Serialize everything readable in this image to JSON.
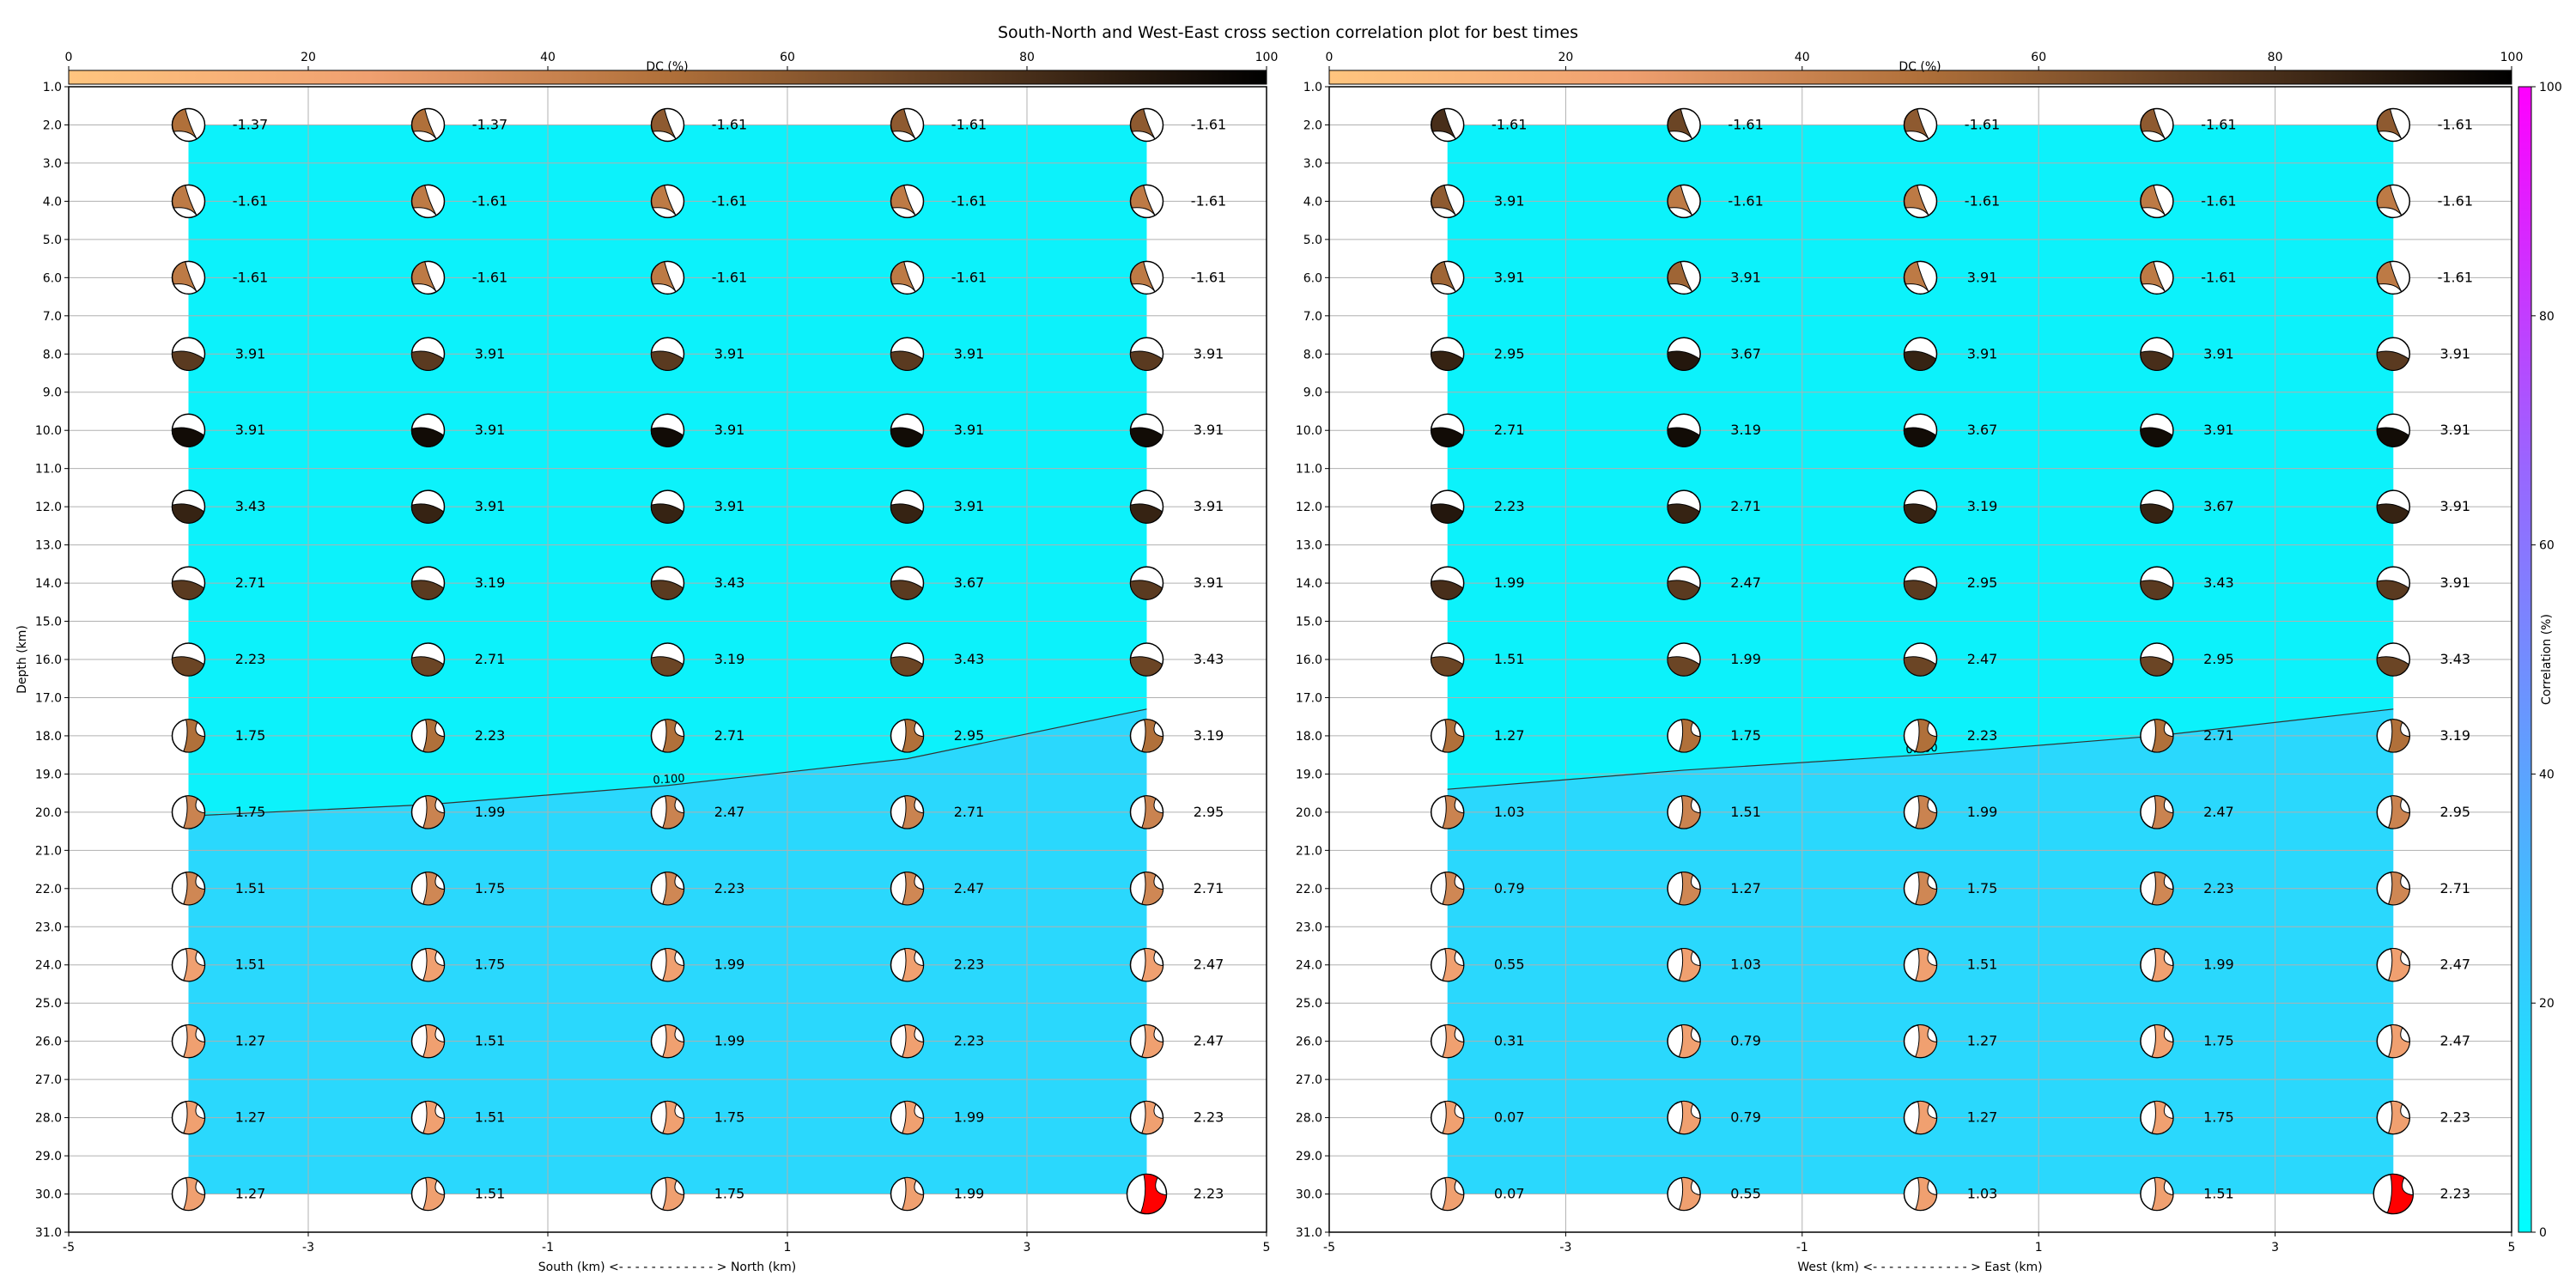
{
  "figure": {
    "title": "South-North and West-East cross section correlation plot for best times"
  },
  "chart_data": [
    {
      "type": "heatmap",
      "panel": "south-north",
      "xlabel": "South (km) <- - - - - - - - - - - - > North (km)",
      "ylabel": "Depth (km)",
      "xlim": [
        -5,
        5
      ],
      "ylim": [
        31,
        1
      ],
      "x_ticks": [
        "-5",
        "-3",
        "-1",
        "1",
        "3",
        "5"
      ],
      "y_ticks": [
        "1.0",
        "2.0",
        "3.0",
        "4.0",
        "5.0",
        "6.0",
        "7.0",
        "8.0",
        "9.0",
        "10.0",
        "11.0",
        "12.0",
        "13.0",
        "14.0",
        "15.0",
        "16.0",
        "17.0",
        "18.0",
        "19.0",
        "20.0",
        "21.0",
        "22.0",
        "23.0",
        "24.0",
        "25.0",
        "26.0",
        "27.0",
        "28.0",
        "29.0",
        "30.0",
        "31.0"
      ],
      "grid": true,
      "x": [
        -4,
        -2,
        0,
        2,
        4
      ],
      "depths": [
        2,
        4,
        6,
        8,
        10,
        12,
        14,
        16,
        18,
        20,
        22,
        24,
        26,
        28,
        30
      ],
      "labels": [
        [
          "-1.37",
          "-1.37",
          "-1.61",
          "-1.61",
          "-1.61"
        ],
        [
          "-1.61",
          "-1.61",
          "-1.61",
          "-1.61",
          "-1.61"
        ],
        [
          "-1.61",
          "-1.61",
          "-1.61",
          "-1.61",
          "-1.61"
        ],
        [
          "3.91",
          "3.91",
          "3.91",
          "3.91",
          "3.91"
        ],
        [
          "3.91",
          "3.91",
          "3.91",
          "3.91",
          "3.91"
        ],
        [
          "3.43",
          "3.91",
          "3.91",
          "3.91",
          "3.91"
        ],
        [
          "2.71",
          "3.19",
          "3.43",
          "3.67",
          "3.91"
        ],
        [
          "2.23",
          "2.71",
          "3.19",
          "3.43",
          "3.43"
        ],
        [
          "1.75",
          "2.23",
          "2.71",
          "2.95",
          "3.19"
        ],
        [
          "1.75",
          "1.99",
          "2.47",
          "2.71",
          "2.95"
        ],
        [
          "1.51",
          "1.75",
          "2.23",
          "2.47",
          "2.71"
        ],
        [
          "1.51",
          "1.75",
          "1.99",
          "2.23",
          "2.47"
        ],
        [
          "1.27",
          "1.51",
          "1.99",
          "2.23",
          "2.47"
        ],
        [
          "1.27",
          "1.51",
          "1.75",
          "1.99",
          "2.23"
        ],
        [
          "1.27",
          "1.51",
          "1.75",
          "1.99",
          "2.23"
        ]
      ],
      "dc_percent": [
        [
          50,
          50,
          60,
          60,
          60
        ],
        [
          45,
          45,
          45,
          45,
          45
        ],
        [
          45,
          45,
          45,
          45,
          45
        ],
        [
          75,
          75,
          75,
          75,
          75
        ],
        [
          95,
          95,
          95,
          95,
          95
        ],
        [
          85,
          85,
          85,
          85,
          85
        ],
        [
          75,
          75,
          75,
          75,
          75
        ],
        [
          70,
          70,
          70,
          70,
          70
        ],
        [
          50,
          50,
          50,
          50,
          50
        ],
        [
          40,
          40,
          40,
          40,
          40
        ],
        [
          38,
          38,
          38,
          38,
          38
        ],
        [
          25,
          25,
          25,
          25,
          25
        ],
        [
          25,
          25,
          25,
          25,
          25
        ],
        [
          25,
          25,
          25,
          25,
          25
        ],
        [
          25,
          25,
          25,
          25,
          0
        ]
      ],
      "highlight": [
        14,
        4
      ],
      "highlight_color": "#ff0000",
      "contour": {
        "label": "0.100",
        "points": [
          [
            -4,
            20.1
          ],
          [
            -2,
            19.8
          ],
          [
            0,
            19.3
          ],
          [
            2,
            18.6
          ],
          [
            4,
            17.3
          ]
        ]
      },
      "upper_color": "#0cf2fb",
      "lower_color": "#2ad8fd"
    },
    {
      "type": "heatmap",
      "panel": "west-east",
      "xlabel": "West (km) <- - - - - - - - - - - - > East (km)",
      "ylabel": "",
      "xlim": [
        -5,
        5
      ],
      "ylim": [
        31,
        1
      ],
      "x_ticks": [
        "-5",
        "-3",
        "-1",
        "1",
        "3",
        "5"
      ],
      "y_ticks": [
        "1.0",
        "2.0",
        "3.0",
        "4.0",
        "5.0",
        "6.0",
        "7.0",
        "8.0",
        "9.0",
        "10.0",
        "11.0",
        "12.0",
        "13.0",
        "14.0",
        "15.0",
        "16.0",
        "17.0",
        "18.0",
        "19.0",
        "20.0",
        "21.0",
        "22.0",
        "23.0",
        "24.0",
        "25.0",
        "26.0",
        "27.0",
        "28.0",
        "29.0",
        "30.0",
        "31.0"
      ],
      "grid": true,
      "x": [
        -4,
        -2,
        0,
        2,
        4
      ],
      "depths": [
        2,
        4,
        6,
        8,
        10,
        12,
        14,
        16,
        18,
        20,
        22,
        24,
        26,
        28,
        30
      ],
      "labels": [
        [
          "-1.61",
          "-1.61",
          "-1.61",
          "-1.61",
          "-1.61"
        ],
        [
          "3.91",
          "-1.61",
          "-1.61",
          "-1.61",
          "-1.61"
        ],
        [
          "3.91",
          "3.91",
          "3.91",
          "-1.61",
          "-1.61"
        ],
        [
          "2.95",
          "3.67",
          "3.91",
          "3.91",
          "3.91"
        ],
        [
          "2.71",
          "3.19",
          "3.67",
          "3.91",
          "3.91"
        ],
        [
          "2.23",
          "2.71",
          "3.19",
          "3.67",
          "3.91"
        ],
        [
          "1.99",
          "2.47",
          "2.95",
          "3.43",
          "3.91"
        ],
        [
          "1.51",
          "1.99",
          "2.47",
          "2.95",
          "3.43"
        ],
        [
          "1.27",
          "1.75",
          "2.23",
          "2.71",
          "3.19"
        ],
        [
          "1.03",
          "1.51",
          "1.99",
          "2.47",
          "2.95"
        ],
        [
          "0.79",
          "1.27",
          "1.75",
          "2.23",
          "2.71"
        ],
        [
          "0.55",
          "1.03",
          "1.51",
          "1.99",
          "2.47"
        ],
        [
          "0.31",
          "0.79",
          "1.27",
          "1.75",
          "2.47"
        ],
        [
          "0.07",
          "0.79",
          "1.27",
          "1.75",
          "2.23"
        ],
        [
          "0.07",
          "0.55",
          "1.03",
          "1.51",
          "2.23"
        ]
      ],
      "dc_percent": [
        [
          80,
          70,
          60,
          60,
          60
        ],
        [
          60,
          45,
          45,
          45,
          45
        ],
        [
          55,
          55,
          45,
          45,
          45
        ],
        [
          85,
          90,
          85,
          80,
          75
        ],
        [
          95,
          95,
          95,
          95,
          95
        ],
        [
          90,
          85,
          85,
          85,
          85
        ],
        [
          80,
          75,
          75,
          75,
          75
        ],
        [
          70,
          70,
          70,
          70,
          70
        ],
        [
          50,
          50,
          50,
          50,
          50
        ],
        [
          40,
          40,
          40,
          40,
          40
        ],
        [
          38,
          38,
          38,
          38,
          38
        ],
        [
          25,
          25,
          25,
          25,
          25
        ],
        [
          25,
          25,
          25,
          25,
          25
        ],
        [
          25,
          25,
          25,
          25,
          25
        ],
        [
          25,
          25,
          25,
          25,
          0
        ]
      ],
      "highlight": [
        14,
        4
      ],
      "highlight_color": "#ff0000",
      "contour": {
        "label": "0.100",
        "points": [
          [
            -4,
            19.4
          ],
          [
            -2,
            18.9
          ],
          [
            0,
            18.5
          ],
          [
            2,
            18.0
          ],
          [
            4,
            17.3
          ]
        ]
      },
      "upper_color": "#0cf2fb",
      "lower_color": "#2ad8fd"
    }
  ],
  "dc_colorbar": {
    "label": "DC (%)",
    "ticks": [
      "0",
      "20",
      "40",
      "60",
      "80",
      "100"
    ],
    "stops": [
      "#ffc57f",
      "#f0a070",
      "#b0703a",
      "#5a3a20",
      "#000000"
    ]
  },
  "correlation_colorbar": {
    "label": "Correlation (%)",
    "ticks": [
      "0",
      "20",
      "40",
      "60",
      "80",
      "100"
    ],
    "stops": [
      "#00ffff",
      "#4cb2ff",
      "#9966ff",
      "#ff00ff"
    ]
  }
}
